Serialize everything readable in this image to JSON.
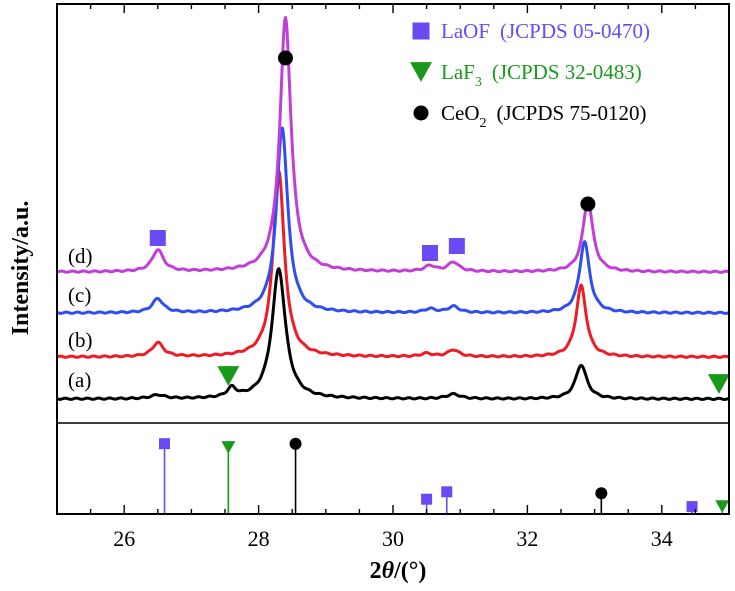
{
  "chart_data": {
    "type": "line",
    "xlabel_main": "2θ",
    "xlabel_unit": "/(°)",
    "ylabel": "Intensity/a.u.",
    "xlim": [
      25,
      35
    ],
    "x_ticks": [
      26,
      28,
      30,
      32,
      34
    ],
    "series": [
      {
        "name": "(a)",
        "color": "#000000",
        "baseline": 0,
        "peaks": [
          [
            26.5,
            1.2,
            0.12
          ],
          [
            27.6,
            3.0,
            0.08
          ],
          [
            28.3,
            42,
            0.12
          ],
          [
            30.9,
            1.5,
            0.12
          ],
          [
            32.8,
            11,
            0.1
          ]
        ]
      },
      {
        "name": "(b)",
        "color": "#ee1c25",
        "baseline": 0,
        "peaks": [
          [
            26.5,
            4.5,
            0.1
          ],
          [
            28.3,
            60,
            0.1
          ],
          [
            30.5,
            1.0,
            0.1
          ],
          [
            30.9,
            2.2,
            0.1
          ],
          [
            32.8,
            23,
            0.09
          ]
        ]
      },
      {
        "name": "(c)",
        "color": "#2f4df0",
        "baseline": 0,
        "peaks": [
          [
            26.5,
            4.5,
            0.1
          ],
          [
            28.35,
            60,
            0.1
          ],
          [
            30.55,
            1.2,
            0.1
          ],
          [
            30.9,
            2.0,
            0.1
          ],
          [
            32.85,
            23,
            0.09
          ]
        ]
      },
      {
        "name": "(d)",
        "color": "#c23ed9",
        "baseline": 0,
        "peaks": [
          [
            26.5,
            7,
            0.1
          ],
          [
            28.4,
            82,
            0.1
          ],
          [
            30.55,
            1.8,
            0.1
          ],
          [
            30.9,
            3.0,
            0.1
          ],
          [
            32.9,
            23,
            0.09
          ]
        ]
      }
    ],
    "legend": [
      {
        "marker": "square",
        "color": "#6a4af4",
        "text_main": "LaOF",
        "text_sub": "",
        "text_ref": "(JCPDS 05-0470)"
      },
      {
        "marker": "triangle-down",
        "color": "#1a9a1a",
        "text_main": "LaF",
        "text_sub": "3",
        "text_ref": "(JCPDS  32-0483)"
      },
      {
        "marker": "circle",
        "color": "#000000",
        "text_main": "CeO",
        "text_sub": "2",
        "text_ref": "(JCPDS  75-0120)"
      }
    ],
    "reference_lines": [
      {
        "phase": "LaOF",
        "marker": "square",
        "color": "#6a4af4",
        "positions": [
          26.6,
          30.5,
          30.8,
          34.45
        ],
        "heights": [
          0.95,
          0.2,
          0.3,
          0.1
        ]
      },
      {
        "phase": "LaF3",
        "marker": "triangle-down",
        "color": "#1a9a1a",
        "positions": [
          27.55,
          34.9
        ],
        "heights": [
          0.9,
          0.1
        ]
      },
      {
        "phase": "CeO2",
        "marker": "circle",
        "color": "#000000",
        "positions": [
          28.55,
          33.1
        ],
        "heights": [
          0.95,
          0.28
        ]
      }
    ],
    "annotations": [
      {
        "marker": "square",
        "color": "#6a4af4",
        "x": 26.5,
        "curve": "(d)"
      },
      {
        "marker": "square",
        "color": "#6a4af4",
        "x": 30.55,
        "curve": "(d)"
      },
      {
        "marker": "square",
        "color": "#6a4af4",
        "x": 30.95,
        "curve": "(d)"
      },
      {
        "marker": "circle",
        "color": "#000000",
        "x": 28.4,
        "curve": "(d)"
      },
      {
        "marker": "circle",
        "color": "#000000",
        "x": 32.9,
        "curve": "(d)"
      },
      {
        "marker": "triangle-down",
        "color": "#1a9a1a",
        "x": 27.55,
        "curve": "(a)"
      },
      {
        "marker": "triangle-down",
        "color": "#1a9a1a",
        "x": 34.85,
        "curve": "(a)"
      }
    ]
  }
}
